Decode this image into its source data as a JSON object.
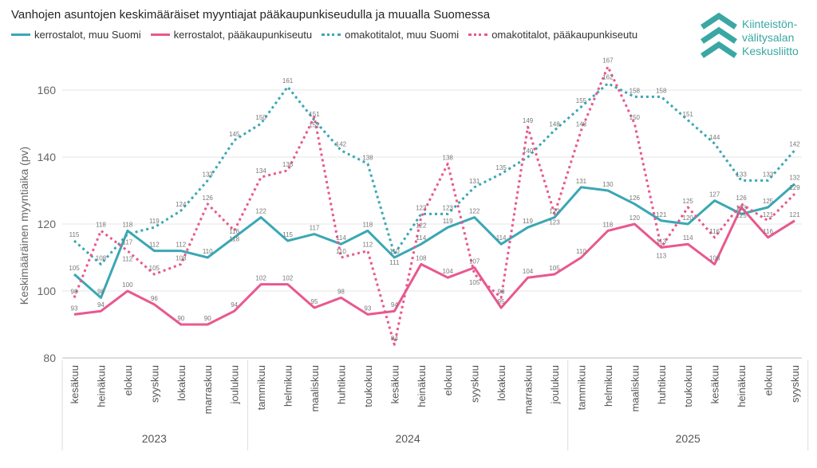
{
  "chart_data": {
    "type": "line",
    "title": "Vanhojen asuntojen keskimääräiset myyntiajat pääkaupunkiseudulla ja muualla Suomessa",
    "ylabel": "Keskimääräinen myyntiaika (pv)",
    "xlabel": "",
    "ylim": [
      80,
      165
    ],
    "yticks": [
      80,
      100,
      120,
      140,
      160
    ],
    "grid": true,
    "legend_position": "top-left",
    "categories": [
      "kesäkuu",
      "heinäkuu",
      "elokuu",
      "syyskuu",
      "lokakuu",
      "marraskuu",
      "joulukuu",
      "tammikuu",
      "helmikuu",
      "maaliskuu",
      "huhtikuu",
      "toukokuu",
      "kesäkuu",
      "heinäkuu",
      "elokuu",
      "syyskuu",
      "lokakuu",
      "marraskuu",
      "joulukuu",
      "tammikuu",
      "helmikuu",
      "maaliskuu",
      "huhtikuu",
      "toukokuu",
      "kesäkuu",
      "heinäkuu",
      "elokuu",
      "syyskuu"
    ],
    "years": [
      {
        "label": "2023",
        "count": 7
      },
      {
        "label": "2024",
        "count": 12
      },
      {
        "label": "2025",
        "count": 9
      }
    ],
    "series": [
      {
        "name": "kerrostalot, muu Suomi",
        "color": "#3aa7b4",
        "style": "solid",
        "values": [
          105,
          98,
          118,
          112,
          112,
          110,
          116,
          122,
          115,
          117,
          114,
          118,
          110,
          114,
          119,
          122,
          114,
          119,
          122,
          131,
          130,
          126,
          121,
          120,
          127,
          123,
          125,
          132
        ]
      },
      {
        "name": "kerrostalot, pääkaupunkiseutu",
        "color": "#e8588e",
        "style": "solid",
        "values": [
          93,
          94,
          100,
          96,
          90,
          90,
          94,
          102,
          102,
          95,
          98,
          93,
          94,
          108,
          104,
          107,
          95,
          104,
          105,
          110,
          118,
          120,
          113,
          114,
          108,
          125,
          116,
          121
        ]
      },
      {
        "name": "omakotitalot, muu Suomi",
        "color": "#3aa7b4",
        "style": "dotted",
        "values": [
          115,
          108,
          117,
          119,
          124,
          133,
          145,
          150,
          161,
          151,
          142,
          138,
          111,
          123,
          123,
          131,
          135,
          140,
          148,
          155,
          162,
          158,
          158,
          151,
          144,
          133,
          133,
          142
        ]
      },
      {
        "name": "omakotitalot, pääkaupunkiseutu",
        "color": "#e8588e",
        "style": "dotted",
        "values": [
          98,
          118,
          112,
          105,
          108,
          126,
          118,
          134,
          136,
          152,
          110,
          112,
          84,
          122,
          138,
          105,
          98,
          149,
          123,
          148,
          167,
          150,
          113,
          125,
          116,
          126,
          121,
          129
        ]
      }
    ]
  },
  "logo": {
    "lines": [
      "Kiinteistön-",
      "välitysalan",
      "Keskusliitto"
    ]
  }
}
